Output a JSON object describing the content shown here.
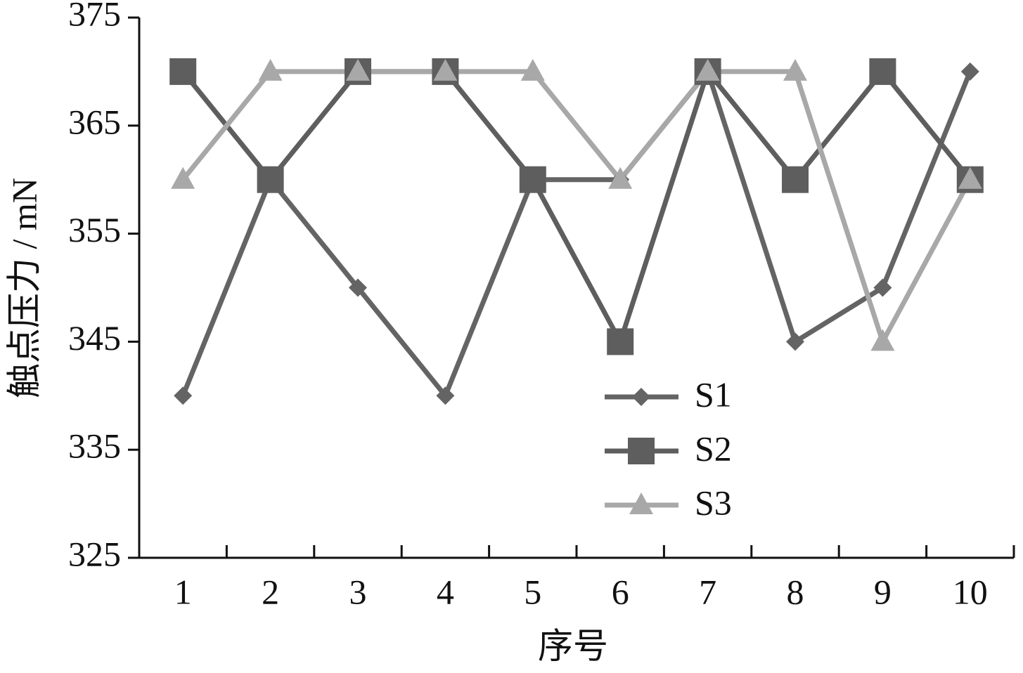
{
  "chart_data": {
    "type": "line",
    "x_label": "序号",
    "y_label": "触点压力 / mN",
    "categories": [
      "1",
      "2",
      "3",
      "4",
      "5",
      "6",
      "7",
      "8",
      "9",
      "10"
    ],
    "series": [
      {
        "name": "S1",
        "color": "#646464",
        "marker": "diamond",
        "values": [
          340,
          360,
          350,
          340,
          360,
          360,
          370,
          345,
          350,
          370
        ]
      },
      {
        "name": "S2",
        "color": "#5e5e5e",
        "marker": "square",
        "values": [
          370,
          360,
          370,
          370,
          360,
          345,
          370,
          360,
          370,
          360
        ]
      },
      {
        "name": "S3",
        "color": "#a8a8a8",
        "marker": "triangle",
        "values": [
          360,
          370,
          370,
          370,
          370,
          360,
          370,
          370,
          345,
          360
        ]
      }
    ],
    "ylim": [
      325,
      375
    ],
    "yticks": [
      325,
      335,
      345,
      355,
      365,
      375
    ],
    "grid": false,
    "legend": "lower center"
  }
}
